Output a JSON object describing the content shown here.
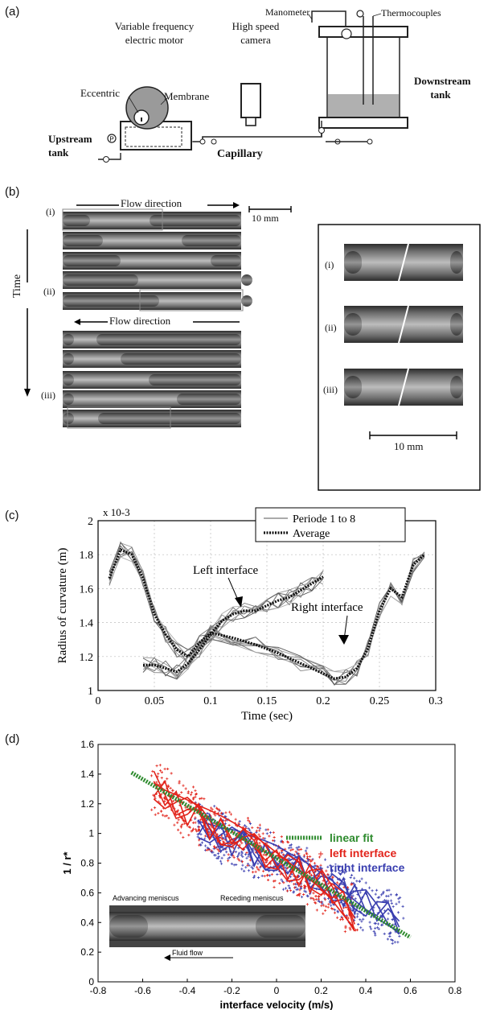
{
  "panel_labels": [
    "(a)",
    "(b)",
    "(c)",
    "(d)"
  ],
  "panel_a": {
    "labels": {
      "manometer": "Manometer",
      "thermocouples": "Thermocouples",
      "motor": "Variable frequency electric motor",
      "camera": "High speed camera",
      "eccentric": "Eccentric",
      "membrane": "Membrane",
      "downstream_tank": "Downstream tank",
      "upstream_tank": "Upstream tank",
      "capillary": "Capillary",
      "pressure_symbol": "P"
    }
  },
  "panel_b": {
    "flow_top": "Flow direction",
    "flow_bottom": "Flow direction",
    "scale_left": "10 mm",
    "time": "Time",
    "frame_labels": [
      "(i)",
      "(ii)",
      "(iii)"
    ],
    "inset_labels": [
      "(i)",
      "(ii)",
      "(iii)"
    ],
    "inset_scale": "10 mm"
  },
  "chart_data": [
    {
      "type": "line",
      "title": "",
      "xlabel": "Time (sec)",
      "ylabel": "Radius of curvature (m)",
      "y_multiplier": "x 10-3",
      "xlim": [
        0,
        0.3
      ],
      "ylim": [
        1,
        2
      ],
      "xticks": [
        "0",
        "0.05",
        "0.1",
        "0.15",
        "0.2",
        "0.25",
        "0.3"
      ],
      "yticks": [
        "1",
        "1.2",
        "1.4",
        "1.6",
        "1.8",
        "2"
      ],
      "grid": true,
      "legend": {
        "position": "top-right",
        "entries": [
          "Periode 1 to 8",
          "Average"
        ]
      },
      "annotations": [
        "Left interface",
        "Right interface"
      ],
      "series": [
        {
          "name": "Average",
          "x": [
            0.01,
            0.02,
            0.03,
            0.04,
            0.05,
            0.06,
            0.07,
            0.08,
            0.09,
            0.1,
            0.12,
            0.14,
            0.16,
            0.18,
            0.2,
            0.21,
            0.22,
            0.23,
            0.24,
            0.25,
            0.26,
            0.27,
            0.28,
            0.29
          ],
          "y": [
            1.66,
            1.83,
            1.8,
            1.66,
            1.45,
            1.33,
            1.24,
            1.2,
            1.28,
            1.34,
            1.31,
            1.27,
            1.22,
            1.16,
            1.1,
            1.07,
            1.08,
            1.13,
            1.25,
            1.47,
            1.6,
            1.55,
            1.74,
            1.8
          ]
        },
        {
          "name": "Average",
          "x": [
            0.04,
            0.05,
            0.06,
            0.07,
            0.08,
            0.09,
            0.1,
            0.11,
            0.12,
            0.13,
            0.14,
            0.15,
            0.16,
            0.17,
            0.18,
            0.19,
            0.2
          ],
          "y": [
            1.15,
            1.15,
            1.13,
            1.11,
            1.16,
            1.24,
            1.33,
            1.41,
            1.45,
            1.47,
            1.47,
            1.5,
            1.53,
            1.55,
            1.59,
            1.63,
            1.67
          ]
        }
      ]
    },
    {
      "type": "scatter",
      "title": "",
      "xlabel": "interface velocity (m/s)",
      "ylabel": "1 / r*",
      "xlim": [
        -0.8,
        0.8
      ],
      "ylim": [
        0,
        1.6
      ],
      "xticks": [
        "-0.8",
        "-0.6",
        "-0.4",
        "-0.2",
        "0",
        "0.2",
        "0.4",
        "0.6",
        "0.8"
      ],
      "yticks": [
        "0",
        "0.2",
        "0.4",
        "0.6",
        "0.8",
        "1",
        "1.2",
        "1.4",
        "1.6"
      ],
      "legend": {
        "position": "right",
        "entries": [
          "linear fit",
          "left interface",
          "right interface"
        ]
      },
      "inset_labels": [
        "Advancing meniscus",
        "Receding meniscus",
        "Fluid flow"
      ],
      "series": [
        {
          "name": "linear fit",
          "x": [
            -0.65,
            0.6
          ],
          "y": [
            1.41,
            0.3
          ]
        },
        {
          "name": "left interface",
          "x": [
            -0.55,
            -0.5,
            -0.45,
            -0.4,
            -0.35,
            -0.3,
            -0.25,
            -0.2,
            -0.15,
            -0.1,
            -0.05,
            0,
            0.05,
            0.1,
            0.15,
            0.2,
            0.25,
            0.3,
            0.35
          ],
          "y": [
            1.32,
            1.25,
            1.2,
            1.15,
            1.1,
            1.06,
            1.02,
            0.98,
            0.94,
            0.9,
            0.86,
            0.82,
            0.78,
            0.74,
            0.7,
            0.66,
            0.6,
            0.52,
            0.44
          ]
        },
        {
          "name": "right interface",
          "x": [
            -0.35,
            -0.3,
            -0.25,
            -0.2,
            -0.15,
            -0.1,
            -0.05,
            0,
            0.05,
            0.1,
            0.15,
            0.2,
            0.25,
            0.3,
            0.35,
            0.4,
            0.45,
            0.5,
            0.55
          ],
          "y": [
            1.06,
            1.02,
            0.98,
            0.95,
            0.92,
            0.88,
            0.85,
            0.82,
            0.78,
            0.75,
            0.72,
            0.68,
            0.65,
            0.6,
            0.56,
            0.52,
            0.48,
            0.45,
            0.42
          ]
        }
      ]
    }
  ]
}
